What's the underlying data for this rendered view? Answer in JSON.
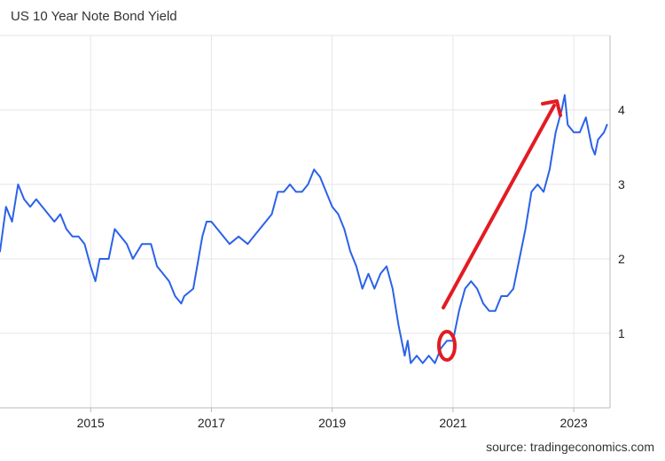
{
  "chart_data": {
    "type": "line",
    "title": "US 10 Year Note Bond Yield",
    "source": "source: tradingeconomics.com",
    "xlabel": "",
    "ylabel": "",
    "x_tick_labels": [
      "2015",
      "2017",
      "2019",
      "2021",
      "2023"
    ],
    "y_tick_labels": [
      "1",
      "2",
      "3",
      "4"
    ],
    "xlim": [
      2013.5,
      2023.6
    ],
    "ylim": [
      0,
      5
    ],
    "grid": true,
    "legend": "none",
    "colors": {
      "line": "#2b62e8",
      "annotation": "#e31b23",
      "grid": "#e6e6e6",
      "axis": "#bbbbbb"
    },
    "series": [
      {
        "x": [
          2013.5,
          2013.6,
          2013.7,
          2013.8,
          2013.9,
          2014.0,
          2014.1,
          2014.2,
          2014.3,
          2014.4,
          2014.5,
          2014.6,
          2014.7,
          2014.8,
          2014.9,
          2015.0,
          2015.08,
          2015.15,
          2015.3,
          2015.4,
          2015.5,
          2015.6,
          2015.7,
          2015.85,
          2016.0,
          2016.1,
          2016.2,
          2016.3,
          2016.4,
          2016.5,
          2016.55,
          2016.7,
          2016.85,
          2016.92,
          2017.0,
          2017.1,
          2017.2,
          2017.3,
          2017.45,
          2017.6,
          2017.7,
          2017.8,
          2017.9,
          2018.0,
          2018.1,
          2018.2,
          2018.3,
          2018.4,
          2018.5,
          2018.6,
          2018.7,
          2018.8,
          2018.9,
          2019.0,
          2019.1,
          2019.2,
          2019.3,
          2019.4,
          2019.5,
          2019.6,
          2019.7,
          2019.8,
          2019.9,
          2020.0,
          2020.1,
          2020.2,
          2020.25,
          2020.3,
          2020.4,
          2020.5,
          2020.6,
          2020.7,
          2020.8,
          2020.9,
          2021.0,
          2021.1,
          2021.2,
          2021.3,
          2021.4,
          2021.5,
          2021.6,
          2021.7,
          2021.8,
          2021.9,
          2022.0,
          2022.1,
          2022.2,
          2022.3,
          2022.4,
          2022.5,
          2022.6,
          2022.7,
          2022.8,
          2022.85,
          2022.9,
          2023.0,
          2023.1,
          2023.2,
          2023.3,
          2023.35,
          2023.4,
          2023.5,
          2023.55
        ],
        "values": [
          2.1,
          2.7,
          2.5,
          3.0,
          2.8,
          2.7,
          2.8,
          2.7,
          2.6,
          2.5,
          2.6,
          2.4,
          2.3,
          2.3,
          2.2,
          1.9,
          1.7,
          2.0,
          2.0,
          2.4,
          2.3,
          2.2,
          2.0,
          2.2,
          2.2,
          1.9,
          1.8,
          1.7,
          1.5,
          1.4,
          1.5,
          1.6,
          2.3,
          2.5,
          2.5,
          2.4,
          2.3,
          2.2,
          2.3,
          2.2,
          2.3,
          2.4,
          2.5,
          2.6,
          2.9,
          2.9,
          3.0,
          2.9,
          2.9,
          3.0,
          3.2,
          3.1,
          2.9,
          2.7,
          2.6,
          2.4,
          2.1,
          1.9,
          1.6,
          1.8,
          1.6,
          1.8,
          1.9,
          1.6,
          1.1,
          0.7,
          0.9,
          0.6,
          0.7,
          0.6,
          0.7,
          0.6,
          0.8,
          0.9,
          0.9,
          1.3,
          1.6,
          1.7,
          1.6,
          1.4,
          1.3,
          1.3,
          1.5,
          1.5,
          1.6,
          2.0,
          2.4,
          2.9,
          3.0,
          2.9,
          3.2,
          3.7,
          4.0,
          4.2,
          3.8,
          3.7,
          3.7,
          3.9,
          3.5,
          3.4,
          3.6,
          3.7,
          3.8
        ]
      }
    ]
  }
}
